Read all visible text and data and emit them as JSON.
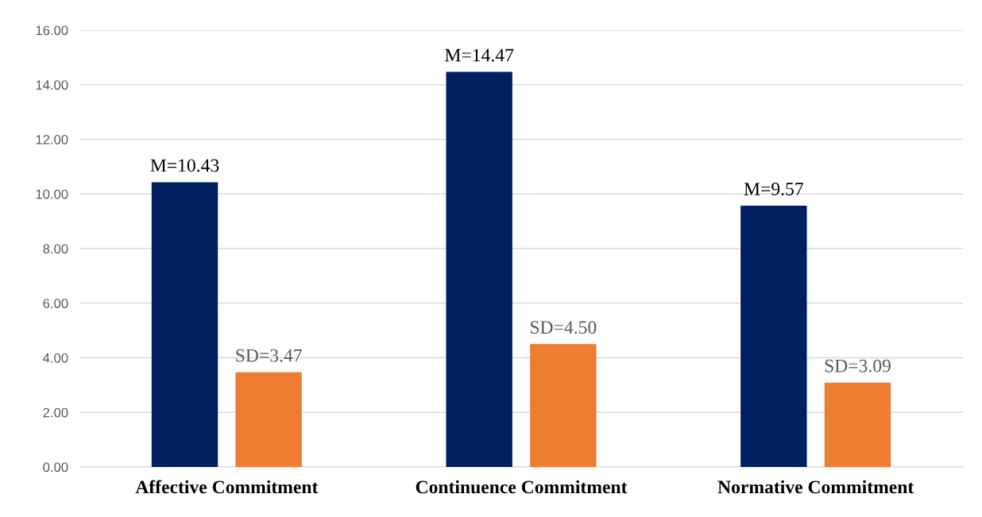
{
  "chart_data": {
    "type": "bar",
    "categories": [
      "Affective Commitment",
      "Continuence Commitment",
      "Normative Commitment"
    ],
    "series": [
      {
        "color": "#002060",
        "values": [
          10.43,
          14.47,
          9.57
        ],
        "value_labels": [
          "M=10.43",
          "M=14.47",
          "M=9.57"
        ]
      },
      {
        "color": "#ed7d31",
        "values": [
          3.47,
          4.5,
          3.09
        ],
        "value_labels": [
          "SD=3.47",
          "SD=4.50",
          "SD=3.09"
        ]
      }
    ],
    "ylim": [
      0,
      16
    ],
    "yticks": [
      {
        "value": 0,
        "label": "0.00"
      },
      {
        "value": 2,
        "label": "2.00"
      },
      {
        "value": 4,
        "label": "4.00"
      },
      {
        "value": 6,
        "label": "6.00"
      },
      {
        "value": 8,
        "label": "8.00"
      },
      {
        "value": 10,
        "label": "10.00"
      },
      {
        "value": 12,
        "label": "12.00"
      },
      {
        "value": 14,
        "label": "14.00"
      },
      {
        "value": 16,
        "label": "16.00"
      }
    ],
    "grid": "y",
    "legend": false
  }
}
